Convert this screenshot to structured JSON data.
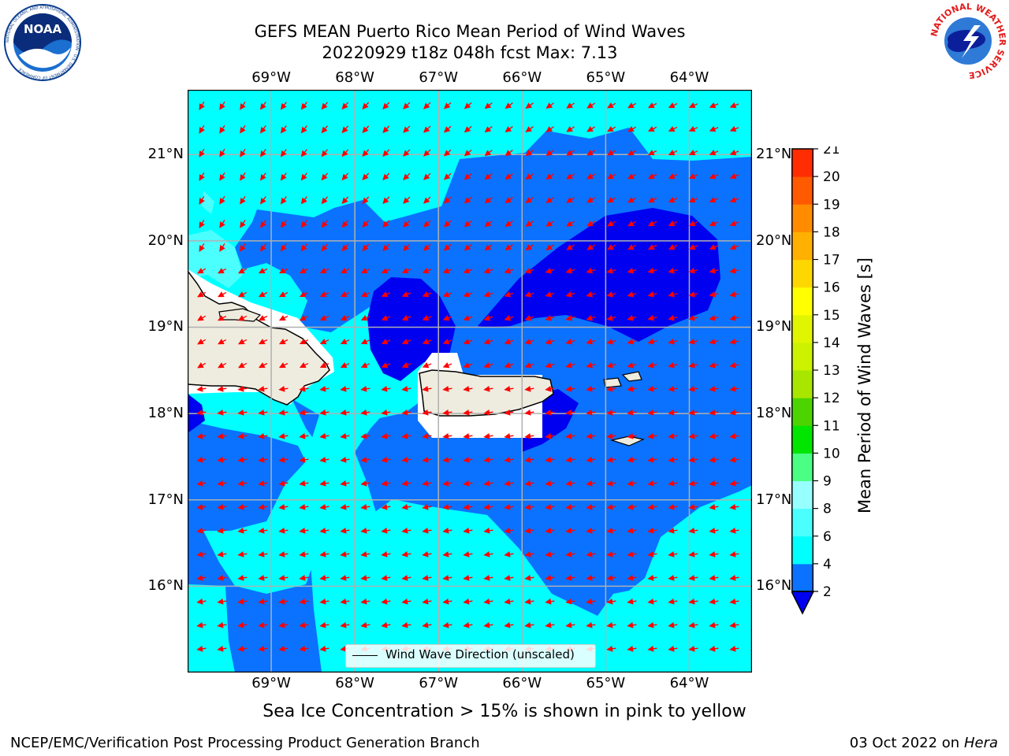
{
  "header": {
    "title_line1": "GEFS MEAN Puerto Rico Mean Period of Wind Waves",
    "title_line2": "20220929 t18z 048h fcst   Max: 7.13"
  },
  "logos": {
    "left": {
      "name": "noaa-logo",
      "text": "NOAA",
      "ring_text": "NATIONAL OCEANIC AND ATMOSPHERIC ADMINISTRATION · U.S. DEPARTMENT OF COMMERCE"
    },
    "right": {
      "name": "nws-logo",
      "ring_text": "NATIONAL WEATHER SERVICE"
    }
  },
  "map": {
    "lon_labels": [
      "69°W",
      "68°W",
      "67°W",
      "66°W",
      "65°W",
      "64°W"
    ],
    "lat_labels": [
      "21°N",
      "20°N",
      "19°N",
      "18°N",
      "17°N",
      "16°N"
    ],
    "lon_values": [
      -69,
      -68,
      -67,
      -66,
      -65,
      -64
    ],
    "lat_values": [
      21,
      20,
      19,
      18,
      17,
      16
    ],
    "lon_range": [
      -70,
      -63.25
    ],
    "lat_range": [
      15.0,
      21.75
    ],
    "legend_label": "Wind Wave Direction (unscaled)",
    "arrow_color": "#ff0000",
    "land_color": "#eeecdf",
    "grid_color": "#b0b0b0"
  },
  "colorbar": {
    "title": "Mean Period of Wind Waves [s]",
    "ticks": [
      "2",
      "4",
      "6",
      "8",
      "9",
      "10",
      "11",
      "12",
      "13",
      "14",
      "15",
      "16",
      "17",
      "18",
      "19",
      "20",
      "21"
    ],
    "colors": [
      "#0a72ff",
      "#00ffff",
      "#4cffff",
      "#98ffff",
      "#4bff84",
      "#00e600",
      "#4cd400",
      "#a8e600",
      "#ccf200",
      "#e0f500",
      "#ffff00",
      "#ffd700",
      "#ffb000",
      "#ff8c00",
      "#ff5a00",
      "#ff2d00"
    ],
    "under_color": "#0000f0"
  },
  "note": "Sea Ice Concentration > 15% is shown in pink to yellow",
  "footer": {
    "left": "NCEP/EMC/Verification Post Processing Product Generation Branch",
    "date": "03 Oct 2022 on ",
    "host": "Hera"
  }
}
